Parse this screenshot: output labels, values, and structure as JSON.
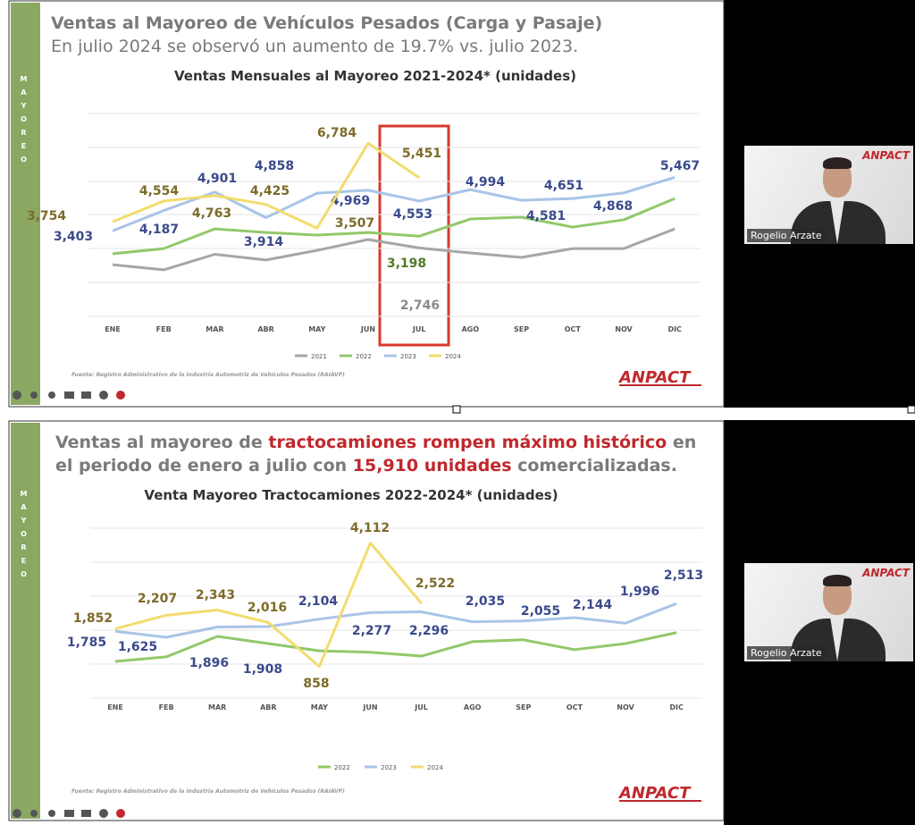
{
  "slides": [
    {
      "heading": "Ventas al Mayoreo de Vehículos Pesados (Carga y Pasaje)",
      "subheading": "En julio 2024 se observó un aumento de 19.7% vs. julio 2023.",
      "sidebar": "MAYOREO",
      "source": "Fuente: Registro Administrativo de la Industria Automotriz de Vehículos Pesados (RAIAVP)",
      "logo": "ANPACT"
    },
    {
      "heading_parts": [
        {
          "text": "Ventas al mayoreo de ",
          "color": "#7a7a7a"
        },
        {
          "text": "tractocamiones rompen máximo histórico",
          "color": "#c0282d"
        },
        {
          "text": " en el periodo de enero a julio con ",
          "color": "#7a7a7a"
        },
        {
          "text": "15,910 unidades",
          "color": "#c0282d"
        },
        {
          "text": " comercializadas.",
          "color": "#7a7a7a"
        }
      ],
      "sidebar": "MAYOREO",
      "source": "Fuente: Registro Administrativo de la Industria Automotriz de Vehículos Pesados (RAIAVP)",
      "logo": "ANPACT"
    }
  ],
  "participants": [
    {
      "name": "Rogelio Arzate",
      "logo": "ANPACT"
    },
    {
      "name": "Rogelio Arzate",
      "logo": "ANPACT"
    }
  ],
  "chart_data": [
    {
      "type": "line",
      "title": "Ventas Mensuales al Mayoreo 2021-2024* (unidades)",
      "categories": [
        "ENE",
        "FEB",
        "MAR",
        "ABR",
        "MAY",
        "JUN",
        "JUL",
        "AGO",
        "SEP",
        "OCT",
        "NOV",
        "DIC"
      ],
      "ylim": [
        0,
        8000
      ],
      "grid": true,
      "legend": "bottom",
      "series": [
        {
          "name": "2021",
          "color": "#a6a6a6",
          "label_color": "#8a8a8a",
          "values": [
            2100,
            1900,
            2500,
            2280,
            2650,
            3070,
            2746,
            2550,
            2380,
            2720,
            2720,
            3480
          ],
          "value_labels": [
            null,
            null,
            null,
            null,
            null,
            null,
            "2,746",
            null,
            null,
            null,
            null,
            null
          ]
        },
        {
          "name": "2022",
          "color": "#92c86a",
          "label_color": "#4f7a2a",
          "values": [
            2520,
            2720,
            3480,
            3340,
            3240,
            3340,
            3198,
            3860,
            3930,
            3550,
            3830,
            4650
          ],
          "value_labels": [
            null,
            null,
            null,
            null,
            null,
            null,
            "3,198",
            null,
            null,
            null,
            null,
            null
          ]
        },
        {
          "name": "2023",
          "color": "#a9c4e8",
          "label_color": "#3b4a8c",
          "values": [
            3403,
            4187,
            4901,
            3914,
            4858,
            4969,
            4553,
            4994,
            4581,
            4651,
            4868,
            5467
          ],
          "value_labels": [
            "3,403",
            "4,187",
            "4,901",
            "3,914",
            "4,858",
            "4,969",
            "4,553",
            "4,994",
            "4,581",
            "4,651",
            "4,868",
            "5,467"
          ]
        },
        {
          "name": "2024",
          "color": "#f2dc6e",
          "label_color": "#7d6a28",
          "values": [
            3754,
            4554,
            4763,
            4425,
            3507,
            6784,
            5451,
            null,
            null,
            null,
            null,
            null
          ],
          "value_labels": [
            "3,754",
            "4,554",
            "4,763",
            "4,425",
            "3,507",
            "6,784",
            "5,451",
            null,
            null,
            null,
            null,
            null
          ]
        }
      ]
    },
    {
      "type": "line",
      "title": "Venta Mayoreo Tractocamiones 2022-2024* (unidades)",
      "categories": [
        "ENE",
        "FEB",
        "MAR",
        "ABR",
        "MAY",
        "JUN",
        "JUL",
        "AGO",
        "SEP",
        "OCT",
        "NOV",
        "DIC"
      ],
      "ylim": [
        0,
        4500
      ],
      "grid": true,
      "legend": "bottom",
      "series": [
        {
          "name": "2022",
          "color": "#92c86a",
          "label_color": "#4f7a2a",
          "values": [
            990,
            1110,
            1650,
            1460,
            1270,
            1230,
            1130,
            1510,
            1560,
            1300,
            1460,
            1750
          ],
          "value_labels": [
            null,
            null,
            null,
            null,
            null,
            null,
            null,
            null,
            null,
            null,
            null,
            null
          ]
        },
        {
          "name": "2023",
          "color": "#a9c4e8",
          "label_color": "#3b4a8c",
          "values": [
            1785,
            1625,
            1896,
            1908,
            2104,
            2277,
            2296,
            2035,
            2055,
            2144,
            1996,
            2513
          ],
          "value_labels": [
            "1,785",
            "1,625",
            "1,896",
            "1,908",
            "2,104",
            "2,277",
            "2,296",
            "2,035",
            "2,055",
            "2,144",
            "1,996",
            "2,513"
          ]
        },
        {
          "name": "2024",
          "color": "#f2dc6e",
          "label_color": "#7d6a28",
          "values": [
            1852,
            2207,
            2343,
            2016,
            858,
            4112,
            2522,
            null,
            null,
            null,
            null,
            null
          ],
          "value_labels": [
            "1,852",
            "2,207",
            "2,343",
            "2,016",
            "858",
            "4,112",
            "2,522",
            null,
            null,
            null,
            null,
            null
          ]
        }
      ]
    }
  ]
}
